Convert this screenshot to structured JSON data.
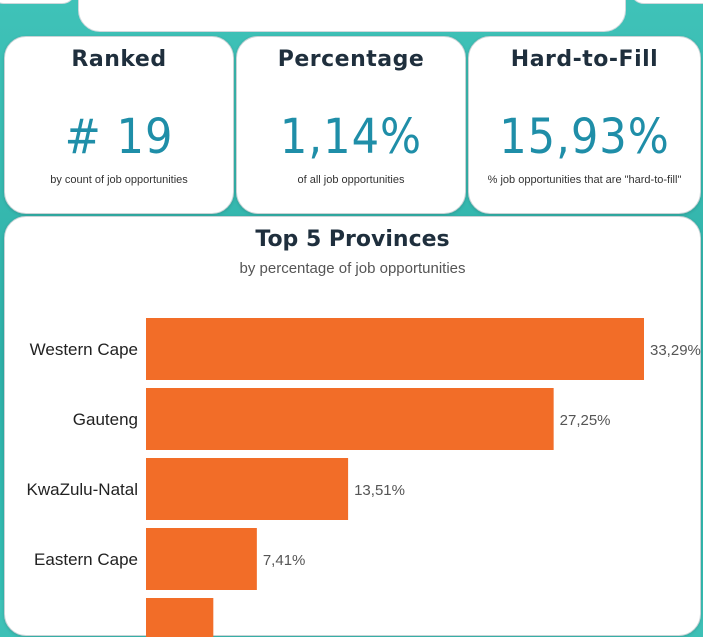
{
  "kpis": [
    {
      "title": "Ranked",
      "value": "# 19",
      "subtitle": "by count of job opportunities"
    },
    {
      "title": "Percentage",
      "value": "1,14%",
      "subtitle": "of all job opportunities"
    },
    {
      "title": "Hard-to-Fill",
      "value": "15,93%",
      "subtitle": "% job opportunities that are \"hard-to-fill\""
    }
  ],
  "colors": {
    "bar": "#f26d28",
    "kpi_value": "#1f8ea8",
    "background": "#3fc2b8"
  },
  "chart_data": {
    "type": "bar",
    "orientation": "horizontal",
    "title": "Top 5 Provinces",
    "subtitle": "by percentage of job opportunities",
    "categories": [
      "Western Cape",
      "Gauteng",
      "KwaZulu-Natal",
      "Eastern Cape"
    ],
    "values": [
      33.29,
      27.25,
      13.51,
      7.41
    ],
    "value_labels": [
      "33,29%",
      "27,25%",
      "13,51%",
      "7,41%"
    ],
    "partial_next_value": 4.5,
    "xlim": [
      0,
      33.29
    ]
  }
}
